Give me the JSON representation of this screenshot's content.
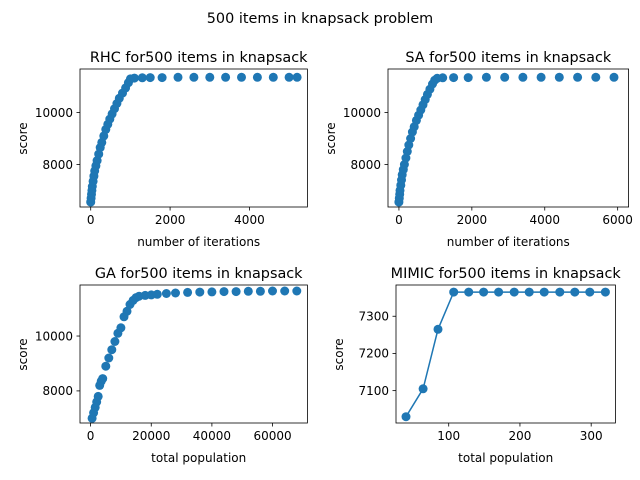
{
  "figure": {
    "suptitle": "500 items in knapsack problem"
  },
  "colors": {
    "series": "#1f77b4"
  },
  "chart_data": [
    {
      "type": "scatter",
      "title": "RHC for500 items in knapsack",
      "xlabel": "number of iterations",
      "ylabel": "score",
      "xlim": [
        -270,
        5460
      ],
      "ylim": [
        6360,
        11680
      ],
      "xticks": [
        0,
        2000,
        4000
      ],
      "yticks": [
        8000,
        10000
      ],
      "marker": "circle",
      "line": false,
      "x": [
        0,
        10,
        20,
        30,
        40,
        60,
        80,
        100,
        130,
        160,
        200,
        240,
        280,
        330,
        380,
        430,
        480,
        540,
        600,
        660,
        720,
        800,
        880,
        950,
        1000,
        1100,
        1300,
        1500,
        1800,
        2200,
        2600,
        3000,
        3400,
        3800,
        4200,
        4600,
        5000,
        5200
      ],
      "y": [
        6550,
        6700,
        6850,
        7000,
        7150,
        7350,
        7550,
        7750,
        7950,
        8150,
        8400,
        8650,
        8850,
        9100,
        9350,
        9550,
        9750,
        9950,
        10150,
        10350,
        10550,
        10750,
        10950,
        11150,
        11300,
        11330,
        11340,
        11350,
        11350,
        11360,
        11360,
        11360,
        11360,
        11360,
        11360,
        11360,
        11360,
        11360
      ]
    },
    {
      "type": "scatter",
      "title": "SA for500 items in knapsack",
      "xlabel": "number of iterations",
      "ylabel": "score",
      "xlim": [
        -300,
        6300
      ],
      "ylim": [
        6360,
        11680
      ],
      "xticks": [
        0,
        2000,
        4000,
        6000
      ],
      "yticks": [
        8000,
        10000
      ],
      "marker": "circle",
      "line": false,
      "x": [
        0,
        10,
        20,
        30,
        50,
        70,
        90,
        120,
        150,
        190,
        230,
        270,
        320,
        370,
        420,
        480,
        540,
        600,
        660,
        720,
        780,
        850,
        920,
        980,
        1050,
        1200,
        1500,
        1900,
        2400,
        2900,
        3400,
        3900,
        4400,
        4900,
        5400,
        5900
      ],
      "y": [
        6550,
        6700,
        6850,
        7000,
        7200,
        7400,
        7600,
        7800,
        8000,
        8250,
        8500,
        8750,
        9000,
        9250,
        9450,
        9700,
        9900,
        10100,
        10300,
        10500,
        10700,
        10900,
        11100,
        11250,
        11320,
        11340,
        11350,
        11350,
        11360,
        11360,
        11360,
        11360,
        11360,
        11360,
        11360,
        11360
      ]
    },
    {
      "type": "scatter",
      "title": "GA for500 items in knapsack",
      "xlabel": "total population",
      "ylabel": "score",
      "xlim": [
        -3500,
        71500
      ],
      "ylim": [
        6830,
        11860
      ],
      "xticks": [
        0,
        20000,
        40000,
        60000
      ],
      "yticks": [
        8000,
        10000
      ],
      "marker": "circle",
      "line": false,
      "x": [
        500,
        1000,
        1500,
        2000,
        2500,
        3000,
        3500,
        4000,
        5000,
        6000,
        7000,
        8000,
        9000,
        10000,
        11000,
        12000,
        13000,
        14000,
        15000,
        16000,
        18000,
        20000,
        22000,
        25000,
        28000,
        32000,
        36000,
        40000,
        44000,
        48000,
        52000,
        56000,
        60000,
        64000,
        68000
      ],
      "y": [
        7000,
        7200,
        7400,
        7600,
        7800,
        8200,
        8350,
        8450,
        8900,
        9200,
        9500,
        9800,
        10100,
        10300,
        10700,
        10900,
        11150,
        11300,
        11400,
        11450,
        11480,
        11500,
        11520,
        11550,
        11570,
        11590,
        11600,
        11610,
        11620,
        11620,
        11630,
        11630,
        11640,
        11640,
        11640
      ]
    },
    {
      "type": "line",
      "title": "MIMIC for500 items in knapsack",
      "xlabel": "total population",
      "ylabel": "score",
      "xlim": [
        26,
        334
      ],
      "ylim": [
        7013,
        7384
      ],
      "xticks": [
        100,
        200,
        300
      ],
      "yticks": [
        7100,
        7200,
        7300
      ],
      "marker": "circle",
      "line": true,
      "x": [
        40,
        64,
        85,
        107,
        128,
        149,
        170,
        192,
        213,
        234,
        256,
        277,
        298,
        320
      ],
      "y": [
        7030,
        7105,
        7265,
        7365,
        7365,
        7365,
        7365,
        7365,
        7365,
        7365,
        7365,
        7365,
        7365,
        7365
      ]
    }
  ]
}
